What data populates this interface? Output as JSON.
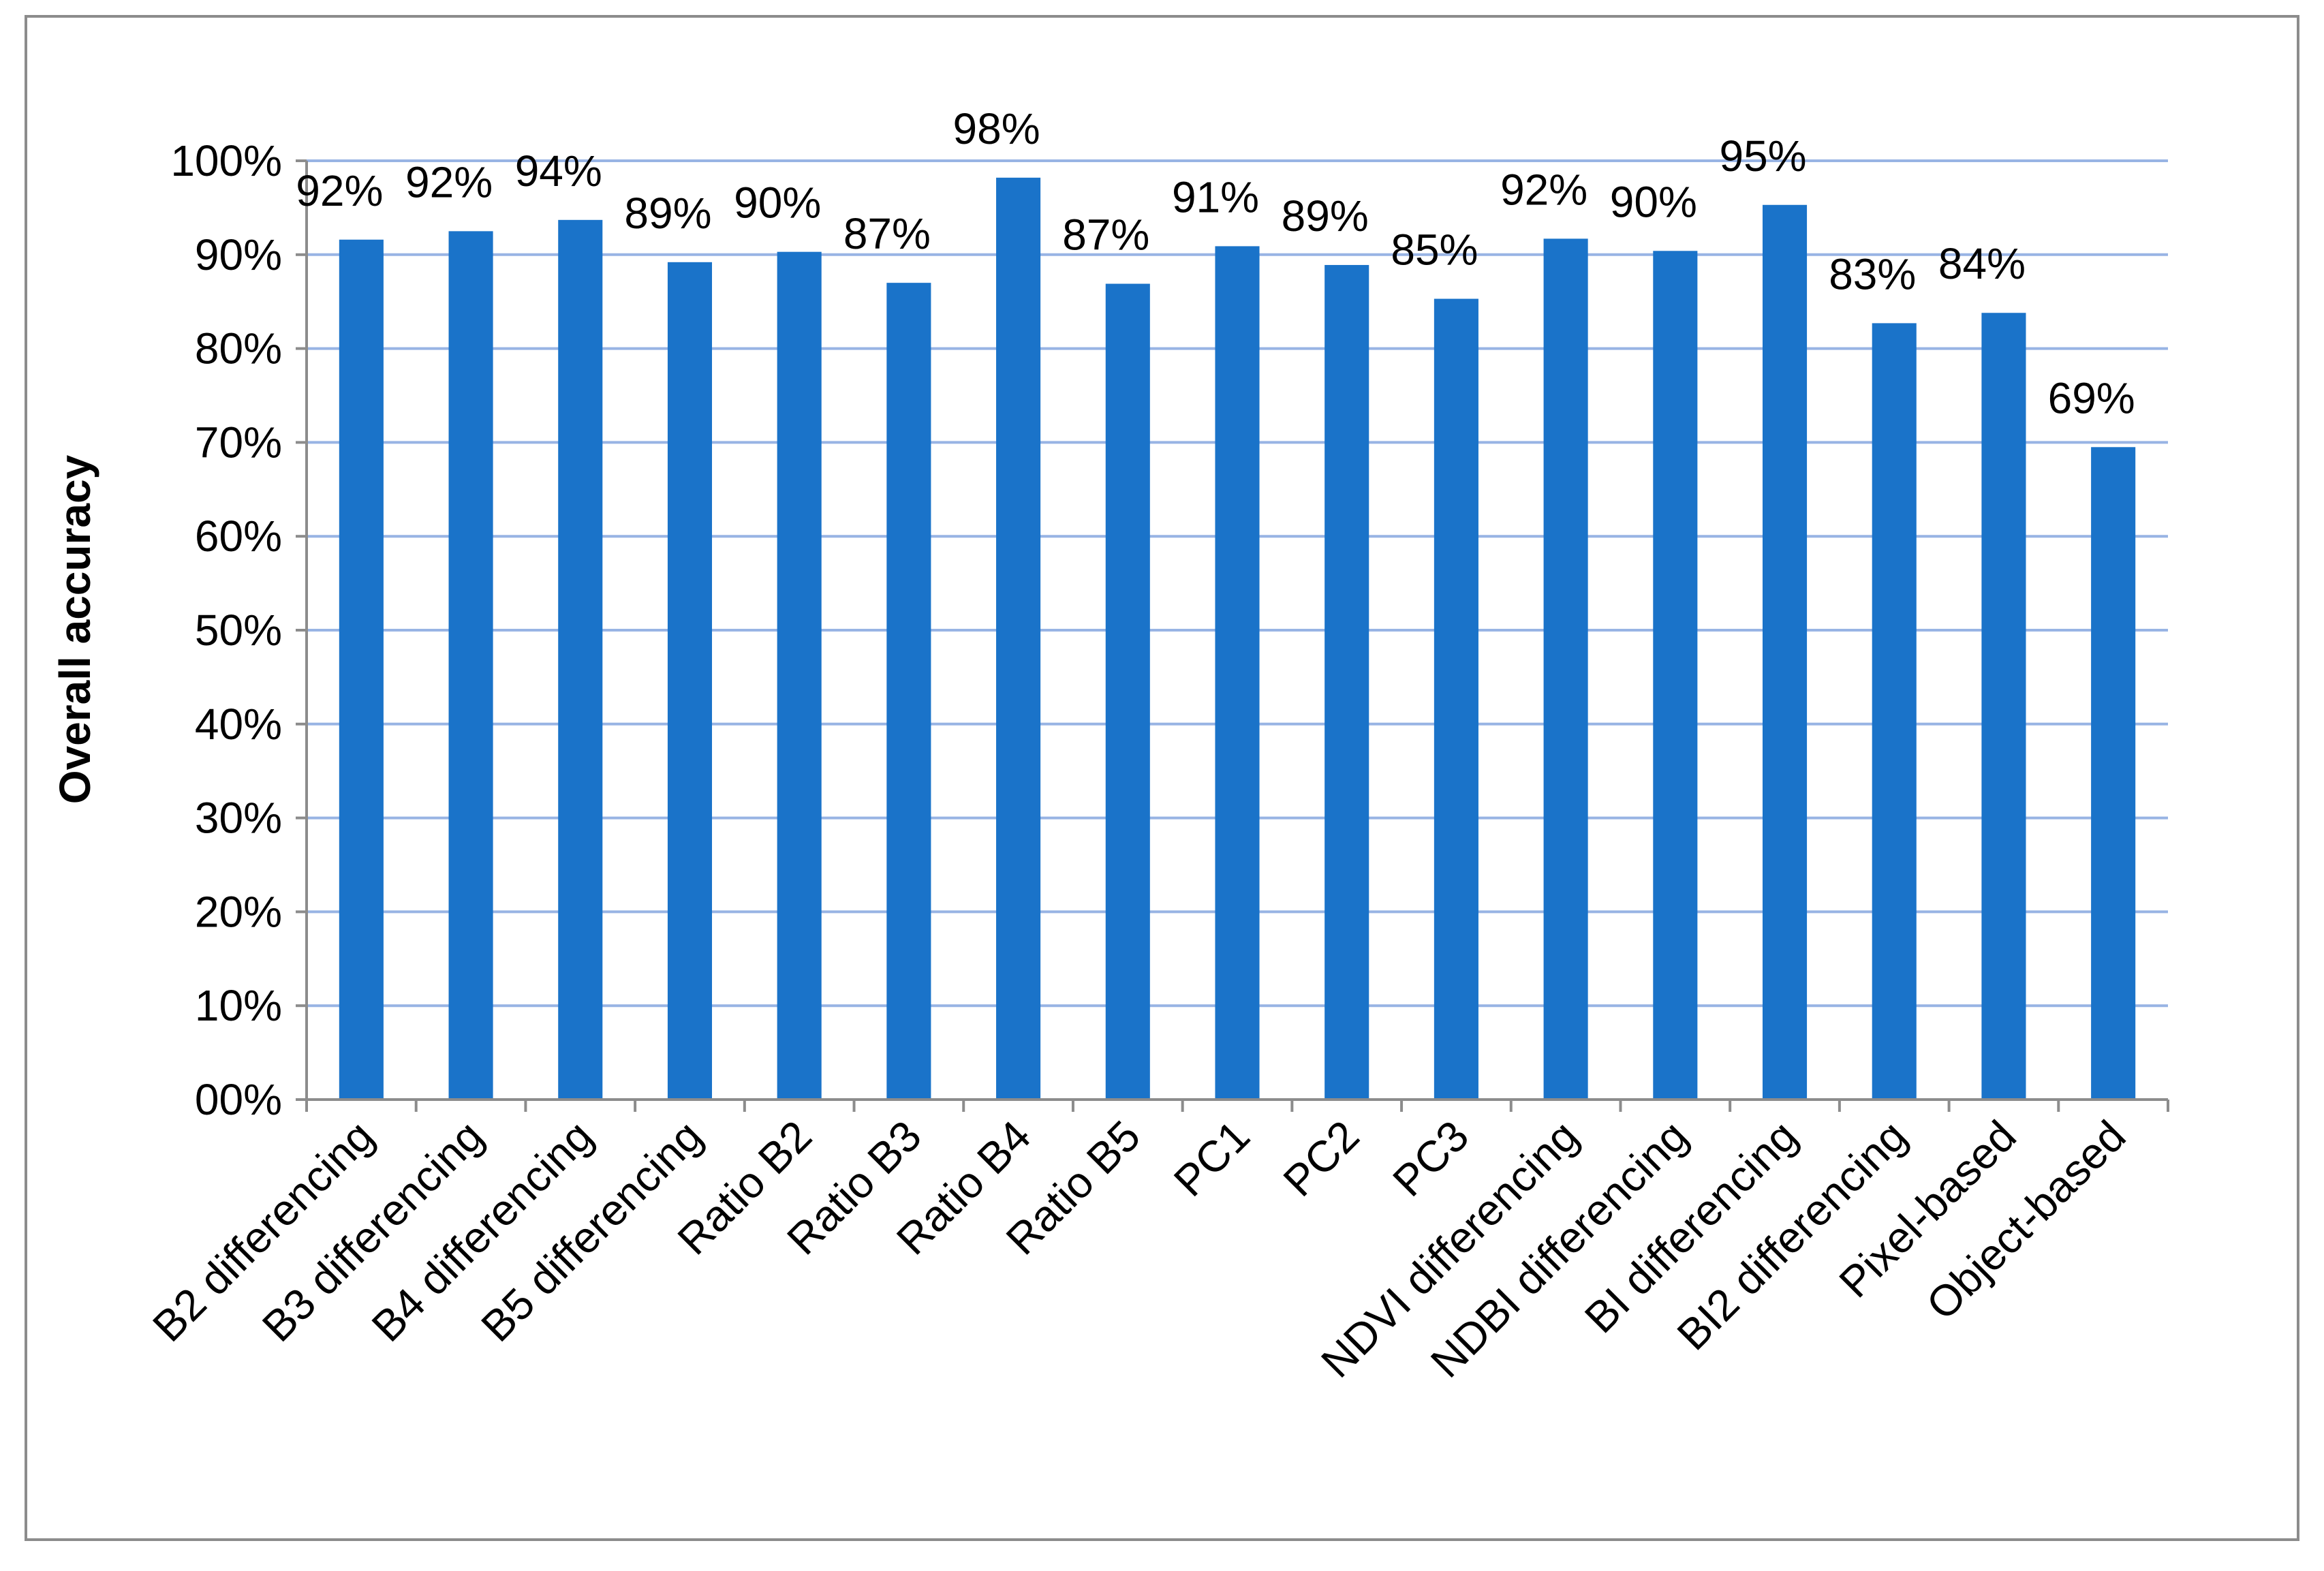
{
  "chart_data": {
    "type": "bar",
    "title": "",
    "xlabel": "",
    "ylabel": "Overall accuracy",
    "ylim": [
      0,
      100
    ],
    "yticks": [
      0,
      10,
      20,
      30,
      40,
      50,
      60,
      70,
      80,
      90,
      100
    ],
    "ytick_labels": [
      "00%",
      "10%",
      "20%",
      "30%",
      "40%",
      "50%",
      "60%",
      "70%",
      "80%",
      "90%",
      "100%"
    ],
    "grid": "horizontal",
    "legend": "none",
    "bar_color": "#1a73c9",
    "grid_color": "#98b4e4",
    "categories": [
      "B2 differencing",
      "B3 differencing",
      "B4 differencing",
      "B5 differencing",
      "Ratio B2",
      "Ratio B3",
      "Ratio B4",
      "Ratio B5",
      "PC1",
      "PC2",
      "PC3",
      "NDVI differencing",
      "NDBI differencing",
      "BI differencing",
      "BI2 differencing",
      "Pixel-based",
      "Object-based"
    ],
    "values": [
      91.6,
      92.5,
      93.7,
      89.2,
      90.3,
      87.0,
      98.2,
      86.9,
      90.9,
      88.9,
      85.3,
      91.7,
      90.4,
      95.3,
      82.7,
      83.8,
      69.5
    ],
    "data_labels": [
      "92%",
      "92%",
      "94%",
      "89%",
      "90%",
      "87%",
      "98%",
      "87%",
      "91%",
      "89%",
      "85%",
      "92%",
      "90%",
      "95%",
      "83%",
      "84%",
      "69%"
    ]
  }
}
